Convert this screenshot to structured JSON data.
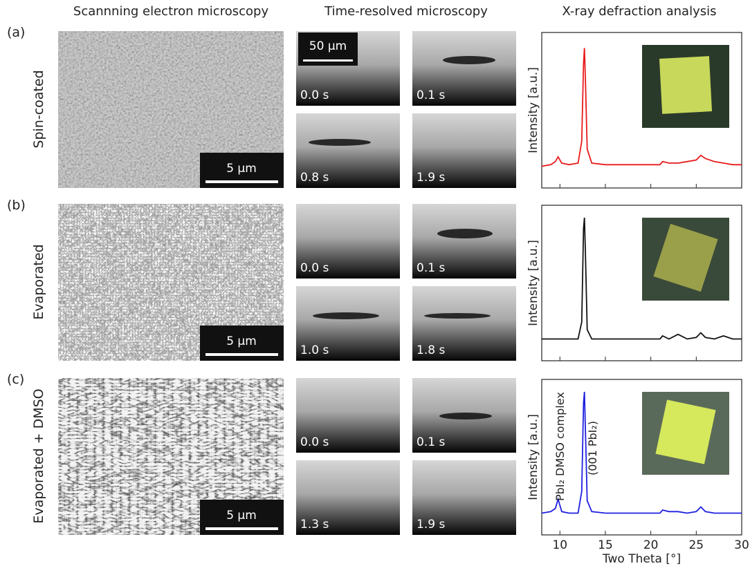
{
  "columns": [
    "Scannning electron microscopy",
    "Time-resolved microscopy",
    "X-ray defraction analysis"
  ],
  "trm_scale": "50 µm",
  "rows": [
    {
      "letter": "(a)",
      "label": "Spin-coated",
      "sem_scale": "5 µm",
      "frames": [
        "0.0 s",
        "0.1 s",
        "0.8 s",
        "1.9 s"
      ]
    },
    {
      "letter": "(b)",
      "label": "Evaporated",
      "sem_scale": "5 µm",
      "frames": [
        "0.0 s",
        "0.1 s",
        "1.0 s",
        "1.8 s"
      ]
    },
    {
      "letter": "(c)",
      "label": "Evaporated + DMSO",
      "sem_scale": "5 µm",
      "frames": [
        "0.0 s",
        "0.1 s",
        "1.3 s",
        "1.9 s"
      ]
    }
  ],
  "chart_data": [
    {
      "type": "line",
      "ylabel": "Intensity [a.u.]",
      "xlim": [
        8,
        30
      ],
      "ylim": [
        0,
        100
      ],
      "x": [
        8,
        9,
        9.5,
        9.8,
        10.2,
        11,
        12,
        12.4,
        12.6,
        12.7,
        12.8,
        13,
        13.5,
        15,
        17,
        19,
        21,
        21.3,
        22,
        23,
        24,
        25,
        25.5,
        26,
        27,
        28,
        29,
        30
      ],
      "series": [
        {
          "color": "#e8191b",
          "values": [
            14,
            15,
            17,
            20,
            16,
            15,
            16,
            30,
            80,
            90,
            70,
            25,
            16,
            15,
            15,
            15,
            15,
            17,
            16,
            16,
            17,
            18,
            21,
            19,
            17,
            16,
            15,
            15
          ]
        }
      ]
    },
    {
      "type": "line",
      "ylabel": "Intensity [a.u.]",
      "xlim": [
        8,
        30
      ],
      "ylim": [
        0,
        100
      ],
      "x": [
        8,
        9,
        9.5,
        9.8,
        10.2,
        11,
        12,
        12.4,
        12.6,
        12.7,
        12.8,
        13,
        13.5,
        15,
        17,
        19,
        21,
        21.3,
        22,
        23,
        24,
        25,
        25.5,
        26,
        27,
        28,
        29,
        30
      ],
      "series": [
        {
          "color": "#111111",
          "values": [
            14,
            14,
            14,
            14,
            14,
            14,
            14,
            25,
            85,
            92,
            70,
            20,
            14,
            14,
            14,
            14,
            14,
            16,
            14,
            17,
            14,
            15,
            18,
            15,
            14,
            16,
            14,
            14
          ]
        }
      ]
    },
    {
      "type": "line",
      "ylabel": "Intensity [a.u.]",
      "xlabel": "Two Theta [°]",
      "xlim": [
        8,
        30
      ],
      "ylim": [
        0,
        100
      ],
      "xticks": [
        10,
        15,
        20,
        25,
        30
      ],
      "annotations": [
        "PbI₂ DMSO complex",
        "(001 PbI₂)"
      ],
      "x": [
        8,
        9,
        9.5,
        9.8,
        10.2,
        11,
        12,
        12.4,
        12.6,
        12.7,
        12.8,
        13,
        13.5,
        15,
        17,
        19,
        21,
        21.3,
        22,
        23,
        24,
        25,
        25.5,
        26,
        27,
        28,
        29,
        30
      ],
      "series": [
        {
          "color": "#1f1fe0",
          "values": [
            14,
            15,
            17,
            23,
            15,
            14,
            14,
            28,
            85,
            92,
            68,
            22,
            15,
            14,
            14,
            14,
            14,
            16,
            15,
            15,
            14,
            15,
            18,
            15,
            14,
            14,
            14,
            14
          ]
        }
      ]
    }
  ]
}
